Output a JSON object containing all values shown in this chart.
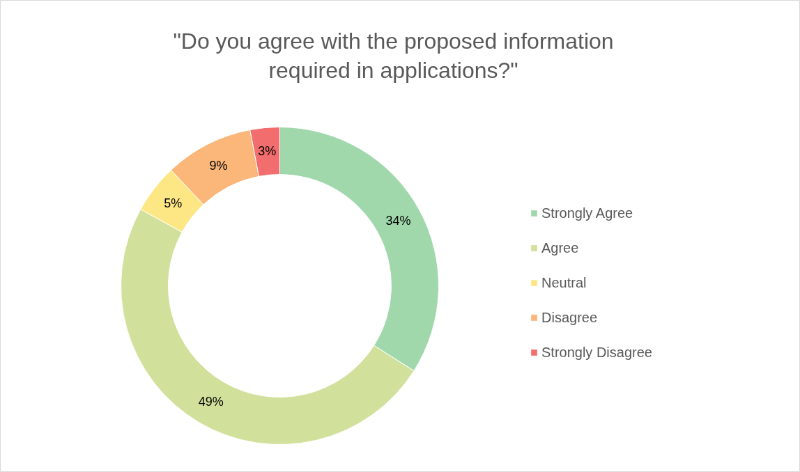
{
  "chart_data": {
    "type": "donut",
    "title": "\"Do you agree with the proposed information required in applications?\"",
    "categories": [
      "Strongly Agree",
      "Agree",
      "Neutral",
      "Disagree",
      "Strongly Disagree"
    ],
    "values": [
      34,
      49,
      5,
      9,
      3
    ],
    "colors": [
      "#a0d8ac",
      "#d1e19b",
      "#fde785",
      "#fbb67a",
      "#f26d6d"
    ],
    "value_labels": [
      "34%",
      "49%",
      "5%",
      "9%",
      "3%"
    ],
    "legend": "right"
  }
}
